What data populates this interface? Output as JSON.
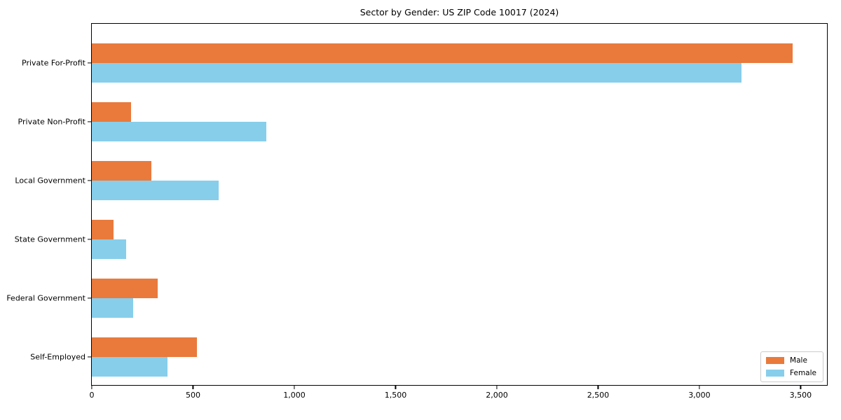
{
  "chart_data": {
    "type": "bar",
    "orientation": "horizontal",
    "title": "Sector by Gender: US ZIP Code 10017 (2024)",
    "categories": [
      "Private For-Profit",
      "Private Non-Profit",
      "Local Government",
      "State Government",
      "Federal Government",
      "Self-Employed"
    ],
    "series": [
      {
        "name": "Male",
        "color": "#E97A3C",
        "values": [
          3460,
          193,
          293,
          107,
          324,
          520
        ]
      },
      {
        "name": "Female",
        "color": "#87CEEB",
        "values": [
          3208,
          861,
          627,
          169,
          203,
          372
        ]
      }
    ],
    "xlabel": "",
    "ylabel": "",
    "xlim": [
      0,
      3630
    ],
    "xticks": [
      0,
      500,
      1000,
      1500,
      2000,
      2500,
      3000,
      3500
    ],
    "xtick_labels": [
      "0",
      "500",
      "1,000",
      "1,500",
      "2,000",
      "2,500",
      "3,000",
      "3,500"
    ],
    "grid": false,
    "legend_position": "lower right",
    "colors": {
      "axis": "#000000",
      "background": "#ffffff",
      "legend_border": "#cccccc"
    }
  }
}
